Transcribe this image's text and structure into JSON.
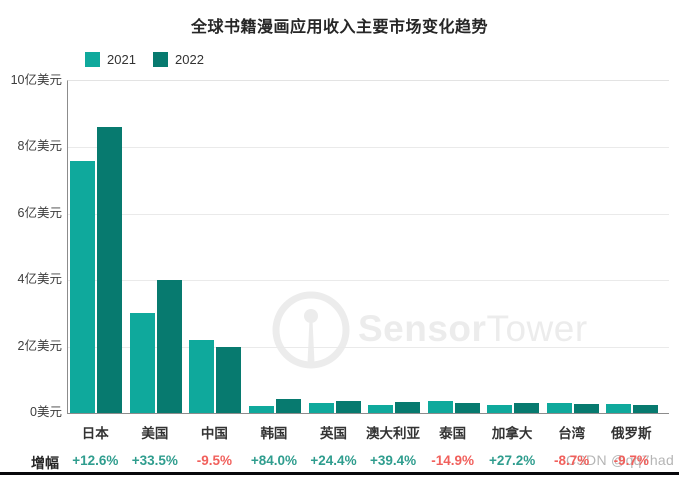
{
  "chart_data": {
    "type": "bar",
    "title": "全球书籍漫画应用收入主要市场变化趋势",
    "unit": "亿美元",
    "categories": [
      "日本",
      "美国",
      "中国",
      "韩国",
      "英国",
      "澳大利亚",
      "泰国",
      "加拿大",
      "台湾",
      "俄罗斯"
    ],
    "series": [
      {
        "name": "2021",
        "color": "#0FA99C",
        "values": [
          7.6,
          3.0,
          2.2,
          0.22,
          0.29,
          0.24,
          0.36,
          0.23,
          0.3,
          0.26
        ]
      },
      {
        "name": "2022",
        "color": "#077A6F",
        "values": [
          8.6,
          4.0,
          2.0,
          0.41,
          0.36,
          0.33,
          0.31,
          0.29,
          0.27,
          0.23
        ]
      }
    ],
    "growth_label": "增幅",
    "growth": [
      "+12.6%",
      "+33.5%",
      "-9.5%",
      "+84.0%",
      "+24.4%",
      "+39.4%",
      "-14.9%",
      "+27.2%",
      "-8.7%",
      "-9.7%"
    ],
    "y_ticks": [
      {
        "value": 10,
        "label": "10亿美元"
      },
      {
        "value": 8,
        "label": "8亿美元"
      },
      {
        "value": 6,
        "label": "6亿美元"
      },
      {
        "value": 4,
        "label": "4亿美元"
      },
      {
        "value": 2,
        "label": "2亿美元"
      },
      {
        "value": 0,
        "label": "0美元"
      }
    ],
    "ylim": [
      0,
      10
    ],
    "grid": true,
    "legend_position": "top-left"
  },
  "watermarks": {
    "brand_bold": "Sensor",
    "brand_light": "Tower",
    "csdn_text": "CSDN @qq7had"
  },
  "colors": {
    "series_2021": "#0FA99C",
    "series_2022": "#077A6F",
    "growth_positive": "#2F9D8E",
    "growth_negative": "#F1605C",
    "brand_watermark": "#ECECEC",
    "csdn_watermark": "#B5B5B5"
  }
}
